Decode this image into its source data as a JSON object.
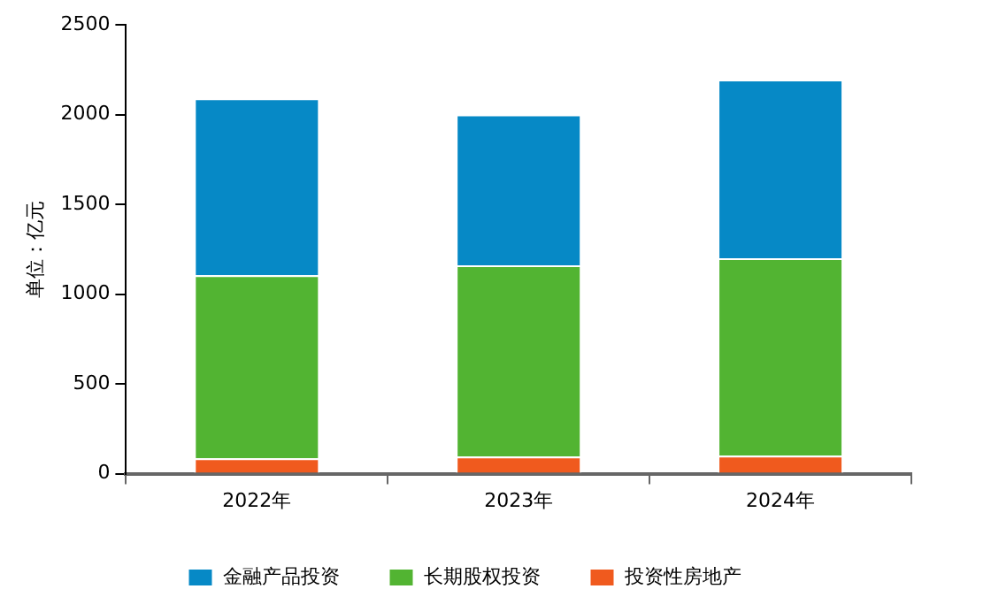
{
  "chart_data": {
    "type": "bar",
    "stacked": true,
    "ylabel": "单位：亿元",
    "categories": [
      "2022年",
      "2023年",
      "2024年"
    ],
    "series": [
      {
        "name": "投资性房地产",
        "color": "#f05a1e",
        "values": [
          85,
          95,
          100
        ]
      },
      {
        "name": "长期股权投资",
        "color": "#52b432",
        "values": [
          1020,
          1065,
          1100
        ]
      },
      {
        "name": "金融产品投资",
        "color": "#0689c6",
        "values": [
          985,
          840,
          995
        ]
      }
    ],
    "ylim": [
      0,
      2500
    ],
    "yticks": [
      0,
      500,
      1000,
      1500,
      2000,
      2500
    ],
    "grid": false,
    "legend": "bottom"
  }
}
